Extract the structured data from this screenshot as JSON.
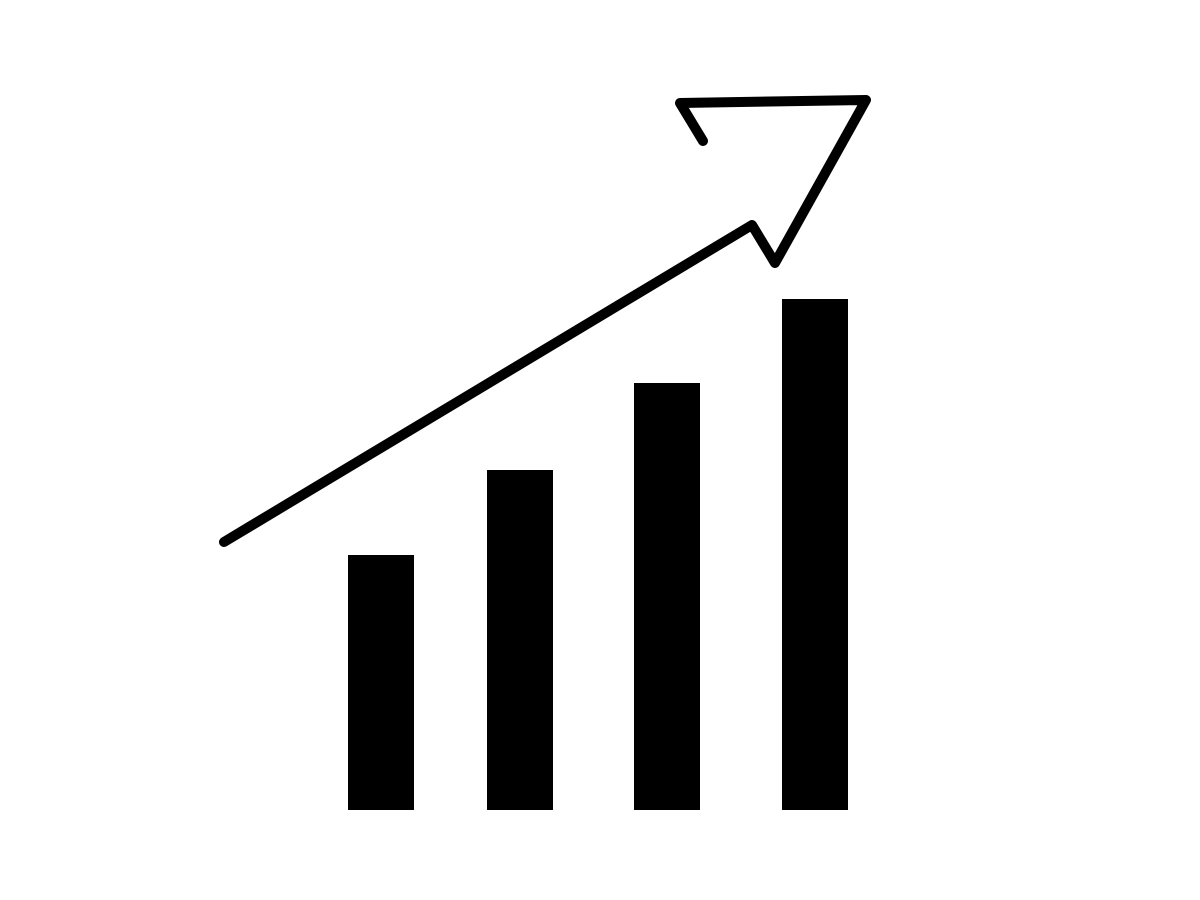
{
  "graphic": {
    "icon": "growth-bar-chart-with-up-arrow-icon",
    "colors": {
      "foreground": "#000000",
      "background": "#ffffff"
    }
  }
}
